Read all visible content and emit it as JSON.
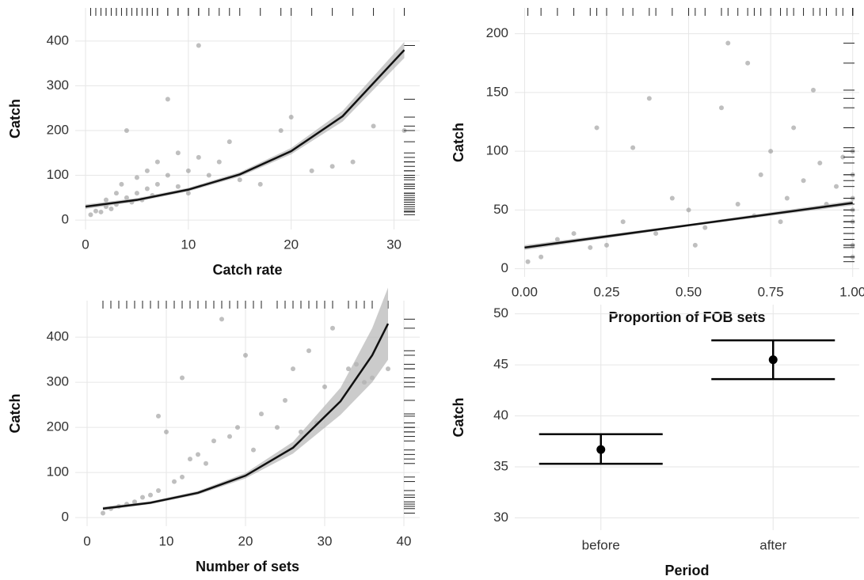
{
  "chart_data": [
    {
      "type": "scatter",
      "x_label": "Catch rate",
      "y_label": "Catch",
      "xlim": [
        -1,
        32.5
      ],
      "ylim": [
        -21,
        474
      ],
      "xticks": [
        0,
        10,
        20,
        30
      ],
      "yticks": [
        0,
        100,
        200,
        300,
        400
      ],
      "grid": true,
      "points": {
        "color": "#808080",
        "x": [
          0.5,
          1,
          1.5,
          2,
          2,
          2.5,
          3,
          3,
          3.5,
          4,
          4,
          4.5,
          5,
          5,
          5.5,
          6,
          6,
          6.5,
          7,
          7,
          8,
          8,
          9,
          9,
          10,
          10,
          11,
          11,
          12,
          13,
          14,
          15,
          17,
          19,
          20,
          22,
          24,
          26,
          28,
          31
        ],
        "y": [
          12,
          20,
          18,
          30,
          45,
          25,
          60,
          35,
          80,
          50,
          200,
          40,
          95,
          60,
          45,
          110,
          70,
          55,
          130,
          80,
          100,
          270,
          75,
          150,
          110,
          60,
          140,
          390,
          100,
          130,
          175,
          90,
          80,
          200,
          230,
          110,
          120,
          130,
          210,
          200
        ]
      },
      "fit": {
        "color": "#111111",
        "band_color": "#b5b5b5",
        "x": [
          0,
          5,
          10,
          15,
          20,
          25,
          31
        ],
        "y": [
          30,
          45,
          68,
          102,
          154,
          232,
          380
        ],
        "lower": [
          25,
          41,
          64,
          97,
          147,
          220,
          362
        ],
        "upper": [
          35,
          49,
          72,
          107,
          161,
          244,
          398
        ]
      }
    },
    {
      "type": "scatter",
      "x_label": "Proportion of FOB sets",
      "y_label": "Catch",
      "xlim": [
        -0.03,
        1.02
      ],
      "ylim": [
        -7,
        222
      ],
      "xticks": [
        {
          "value": 0,
          "label": "0.00"
        },
        0.25,
        {
          "value": 0.5,
          "label": "0.50"
        },
        0.75,
        {
          "value": 1,
          "label": "1.00"
        }
      ],
      "yticks": [
        0,
        50,
        100,
        150,
        200
      ],
      "grid": true,
      "points": {
        "color": "#808080",
        "x": [
          0.01,
          0.05,
          0.1,
          0.15,
          0.2,
          0.22,
          0.25,
          0.3,
          0.33,
          0.38,
          0.4,
          0.45,
          0.5,
          0.52,
          0.55,
          0.6,
          0.62,
          0.65,
          0.68,
          0.7,
          0.72,
          0.75,
          0.78,
          0.8,
          0.82,
          0.85,
          0.88,
          0.9,
          0.92,
          0.95,
          0.97,
          1,
          1,
          1,
          1,
          1,
          1,
          1
        ],
        "y": [
          6,
          10,
          25,
          30,
          18,
          120,
          20,
          40,
          103,
          145,
          30,
          60,
          50,
          20,
          35,
          137,
          192,
          55,
          175,
          45,
          80,
          100,
          40,
          60,
          120,
          75,
          152,
          90,
          55,
          70,
          95,
          100,
          80,
          60,
          40,
          20,
          10,
          50
        ]
      },
      "fit": {
        "color": "#111111",
        "band_color": "#b5b5b5",
        "x": [
          0,
          0.5,
          1
        ],
        "y": [
          18,
          37,
          56
        ],
        "lower": [
          16,
          36,
          54
        ],
        "upper": [
          20,
          38,
          58
        ]
      }
    },
    {
      "type": "scatter",
      "x_label": "Number of sets",
      "y_label": "Catch",
      "xlim": [
        -1.5,
        42
      ],
      "ylim": [
        -19,
        481
      ],
      "xticks": [
        0,
        10,
        20,
        30,
        40
      ],
      "yticks": [
        0,
        100,
        200,
        300,
        400
      ],
      "grid": true,
      "points": {
        "color": "#808080",
        "x": [
          2,
          3,
          4,
          5,
          6,
          7,
          8,
          9,
          9,
          10,
          11,
          12,
          12,
          13,
          14,
          15,
          16,
          17,
          18,
          19,
          20,
          21,
          22,
          24,
          25,
          26,
          27,
          28,
          29,
          30,
          31,
          33,
          34,
          35,
          36,
          38
        ],
        "y": [
          10,
          20,
          25,
          30,
          35,
          45,
          50,
          60,
          225,
          190,
          80,
          90,
          310,
          130,
          140,
          120,
          170,
          440,
          180,
          200,
          360,
          150,
          230,
          200,
          260,
          330,
          190,
          370,
          210,
          290,
          420,
          330,
          340,
          300,
          310,
          330
        ]
      },
      "fit": {
        "color": "#111111",
        "band_color": "#b5b5b5",
        "x": [
          2,
          8,
          14,
          20,
          26,
          32,
          36,
          38
        ],
        "y": [
          20,
          33,
          55,
          93,
          155,
          258,
          360,
          430
        ],
        "lower": [
          16,
          30,
          51,
          87,
          142,
          228,
          300,
          350
        ],
        "upper": [
          24,
          36,
          59,
          99,
          168,
          288,
          420,
          510
        ]
      }
    },
    {
      "type": "errorbar",
      "x_label": "Period",
      "y_label": "Catch",
      "categories": [
        "before",
        "after"
      ],
      "ylim": [
        28.8,
        50.9
      ],
      "yticks": [
        30,
        35,
        40,
        45,
        50
      ],
      "grid": true,
      "color": "#000000",
      "values": [
        36.7,
        45.5
      ],
      "lower": [
        35.3,
        43.6
      ],
      "upper": [
        38.2,
        47.4
      ]
    }
  ]
}
